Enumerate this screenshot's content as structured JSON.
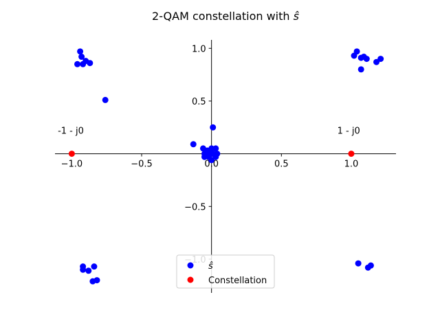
{
  "chart_data": {
    "type": "scatter",
    "title": "2-QAM constellation with ",
    "title_symbol": "ŝ",
    "xlabel": "",
    "ylabel": "",
    "xlim": [
      -1.12,
      1.32
    ],
    "ylim": [
      -1.32,
      1.08
    ],
    "grid": false,
    "spines": "centered",
    "x_ticks": [
      -1.0,
      -0.5,
      0.0,
      0.5,
      1.0
    ],
    "x_tick_labels": [
      "−1.0",
      "−0.5",
      "0.0",
      "0.5",
      "1.0"
    ],
    "y_ticks": [
      -1.0,
      -0.5,
      0.5,
      1.0
    ],
    "y_tick_labels": [
      "−1.0",
      "−0.5",
      "0.5",
      "1.0"
    ],
    "legend_placement": "lower center",
    "series": [
      {
        "name": "ŝ",
        "color": "#0000ff",
        "points": [
          [
            -0.94,
            0.97
          ],
          [
            -0.93,
            0.92
          ],
          [
            -0.9,
            0.88
          ],
          [
            -0.96,
            0.85
          ],
          [
            -0.92,
            0.85
          ],
          [
            -0.87,
            0.86
          ],
          [
            -0.76,
            0.51
          ],
          [
            1.04,
            0.97
          ],
          [
            1.02,
            0.93
          ],
          [
            1.07,
            0.91
          ],
          [
            1.09,
            0.92
          ],
          [
            1.11,
            0.9
          ],
          [
            1.18,
            0.87
          ],
          [
            1.21,
            0.9
          ],
          [
            1.07,
            0.8
          ],
          [
            0.01,
            0.25
          ],
          [
            -0.13,
            0.09
          ],
          [
            -0.06,
            0.05
          ],
          [
            -0.03,
            0.03
          ],
          [
            0.0,
            0.05
          ],
          [
            0.03,
            0.05
          ],
          [
            -0.05,
            0.0
          ],
          [
            -0.02,
            0.0
          ],
          [
            0.01,
            0.0
          ],
          [
            0.04,
            0.0
          ],
          [
            -0.05,
            -0.03
          ],
          [
            -0.02,
            -0.03
          ],
          [
            0.0,
            -0.06
          ],
          [
            0.03,
            -0.03
          ],
          [
            -0.01,
            0.02
          ],
          [
            -0.92,
            -1.07
          ],
          [
            -0.92,
            -1.1
          ],
          [
            -0.88,
            -1.11
          ],
          [
            -0.84,
            -1.07
          ],
          [
            -0.85,
            -1.21
          ],
          [
            -0.82,
            -1.2
          ],
          [
            1.05,
            -1.04
          ],
          [
            1.12,
            -1.08
          ],
          [
            1.14,
            -1.06
          ]
        ]
      },
      {
        "name": "Constellation",
        "color": "#ff0000",
        "points": [
          [
            -1.0,
            0.0
          ],
          [
            1.0,
            0.0
          ]
        ]
      }
    ],
    "annotations": [
      {
        "text": "-1 - j0",
        "x": -1.1,
        "y": 0.19
      },
      {
        "text": "1 - j0",
        "x": 0.9,
        "y": 0.19
      }
    ]
  }
}
